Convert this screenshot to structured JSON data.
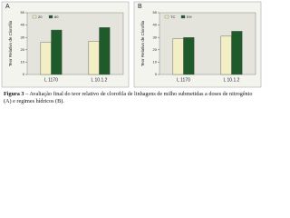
{
  "chart_data": [
    {
      "type": "bar",
      "panel": "A",
      "ylabel": "Teor Relativo de Clorofila",
      "categories": [
        "L 1170",
        "L 10.1.2"
      ],
      "series": [
        {
          "name": "20",
          "color": "#f3efc4",
          "values": [
            26,
            27
          ]
        },
        {
          "name": "80",
          "color": "#1f5a2a",
          "values": [
            36,
            38
          ]
        }
      ],
      "ylim": [
        0,
        50
      ],
      "yticks": [
        0,
        10,
        20,
        30,
        40,
        50
      ],
      "grid": false
    },
    {
      "type": "bar",
      "panel": "B",
      "ylabel": "Teor Relativo de Clorofila",
      "categories": [
        "L 1170",
        "L 10.1.2"
      ],
      "series": [
        {
          "name": "TC",
          "color": "#f3efc4",
          "values": [
            29,
            31
          ]
        },
        {
          "name": "EH",
          "color": "#1f5a2a",
          "values": [
            30,
            35
          ]
        }
      ],
      "ylim": [
        0,
        50
      ],
      "yticks": [
        0,
        10,
        20,
        30,
        40,
        50
      ],
      "grid": false
    }
  ],
  "caption": {
    "label": "Figura 3",
    "text": " – Avaliação final do teor relativo de clorofila de linhagens de milho submetidas a doses de nitrogênio (A) e regimes hídricos (B)."
  }
}
